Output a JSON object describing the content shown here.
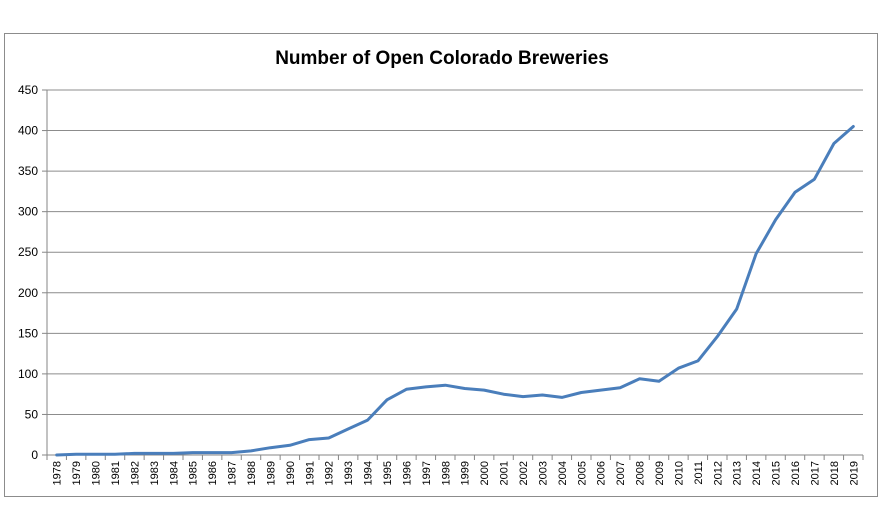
{
  "chart_data": {
    "type": "line",
    "title": "Number of Open Colorado Breweries",
    "xlabel": "",
    "ylabel": "",
    "ylim": [
      0,
      450
    ],
    "yticks": [
      0,
      50,
      100,
      150,
      200,
      250,
      300,
      350,
      400,
      450
    ],
    "grid": true,
    "legend": "none",
    "line_color": "#4a7ebb",
    "categories": [
      "1978",
      "1979",
      "1980",
      "1981",
      "1982",
      "1983",
      "1984",
      "1985",
      "1986",
      "1987",
      "1988",
      "1989",
      "1990",
      "1991",
      "1992",
      "1993",
      "1994",
      "1995",
      "1996",
      "1997",
      "1998",
      "1999",
      "2000",
      "2001",
      "2002",
      "2003",
      "2004",
      "2005",
      "2006",
      "2007",
      "2008",
      "2009",
      "2010",
      "2011",
      "2012",
      "2013",
      "2014",
      "2015",
      "2016",
      "2017",
      "2018",
      "2019"
    ],
    "series": [
      {
        "values": [
          0,
          1,
          1,
          1,
          2,
          2,
          2,
          3,
          3,
          3,
          5,
          9,
          12,
          19,
          21,
          32,
          43,
          68,
          81,
          84,
          86,
          82,
          80,
          75,
          72,
          74,
          71,
          77,
          80,
          83,
          94,
          91,
          107,
          116,
          146,
          180,
          248,
          290,
          324,
          340,
          384,
          405
        ]
      }
    ]
  }
}
